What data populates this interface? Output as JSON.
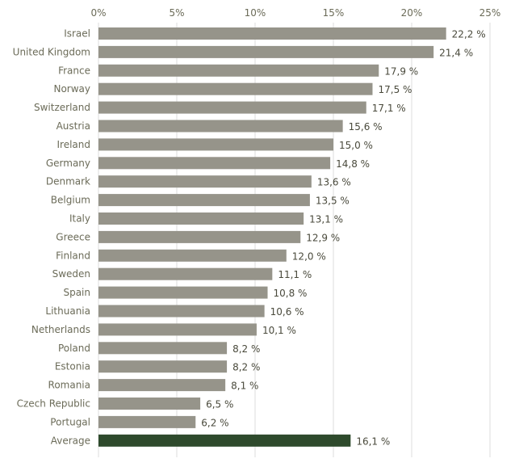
{
  "chart_data": {
    "type": "bar",
    "orientation": "horizontal",
    "categories": [
      "Israel",
      "United Kingdom",
      "France",
      "Norway",
      "Switzerland",
      "Austria",
      "Ireland",
      "Germany",
      "Denmark",
      "Belgium",
      "Italy",
      "Greece",
      "Finland",
      "Sweden",
      "Spain",
      "Lithuania",
      "Netherlands",
      "Poland",
      "Estonia",
      "Romania",
      "Czech Republic",
      "Portugal",
      "Average"
    ],
    "values": [
      22.2,
      21.4,
      17.9,
      17.5,
      17.1,
      15.6,
      15.0,
      14.8,
      13.6,
      13.5,
      13.1,
      12.9,
      12.0,
      11.1,
      10.8,
      10.6,
      10.1,
      8.2,
      8.2,
      8.1,
      6.5,
      6.2,
      16.1
    ],
    "value_labels": [
      "22,2 %",
      "21,4 %",
      "17,9 %",
      "17,5 %",
      "17,1 %",
      "15,6 %",
      "15,0 %",
      "14,8 %",
      "13,6 %",
      "13,5 %",
      "13,1 %",
      "12,9 %",
      "12,0 %",
      "11,1 %",
      "10,8 %",
      "10,6 %",
      "10,1 %",
      "8,2 %",
      "8,2 %",
      "8,1 %",
      "6,5 %",
      "6,2 %",
      "16,1 %"
    ],
    "xlim": [
      0,
      25
    ],
    "x_ticks": [
      0,
      5,
      10,
      15,
      20,
      25
    ],
    "x_tick_labels": [
      "0%",
      "5%",
      "10%",
      "15%",
      "20%",
      "25%"
    ],
    "x_axis_position": "top",
    "grid": true,
    "colors": {
      "bar": "#96948a",
      "highlight": "#2e4a2c",
      "grid": "#dcdcdc",
      "text": "#6b6b58"
    },
    "highlight_category": "Average"
  }
}
